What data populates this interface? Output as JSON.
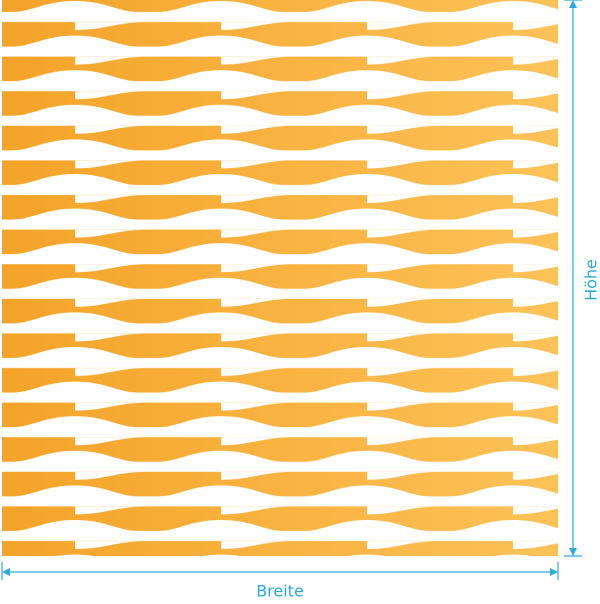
{
  "labels": {
    "width": "Breite",
    "height": "Höhe"
  }
}
